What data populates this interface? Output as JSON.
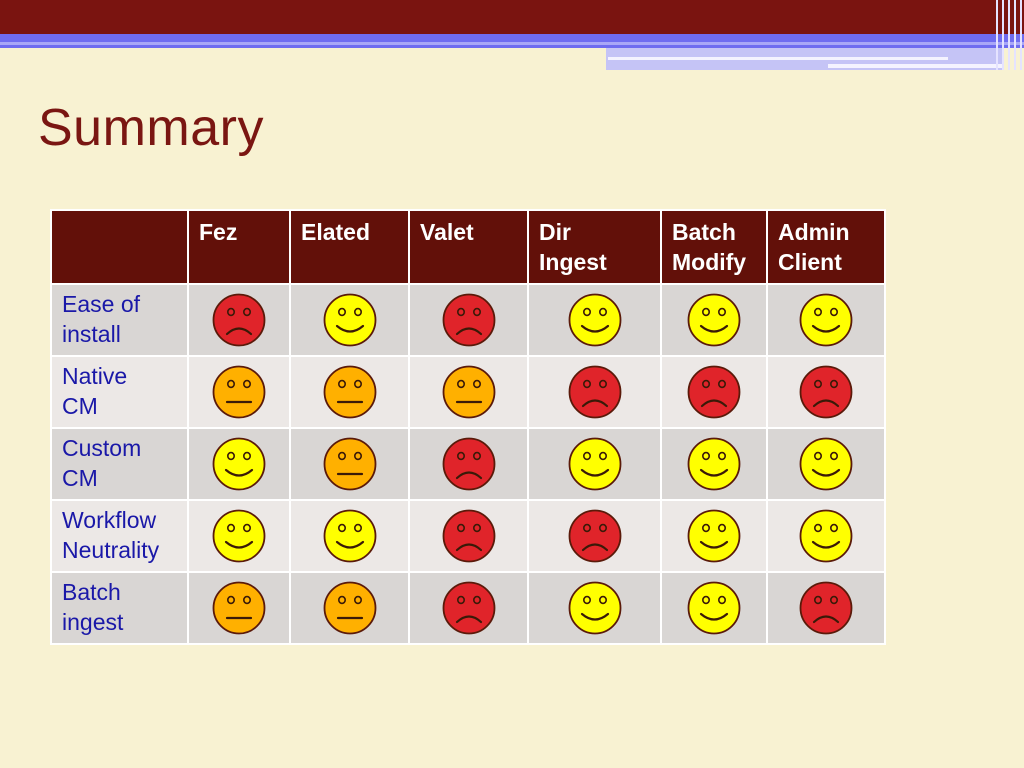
{
  "slide": {
    "title": "Summary"
  },
  "table": {
    "columns": [
      "",
      "Fez",
      "Elated",
      "Valet",
      "Dir Ingest",
      "Batch Modify",
      "Admin Client"
    ],
    "column_lines": [
      [
        ""
      ],
      [
        "Fez"
      ],
      [
        "Elated"
      ],
      [
        "Valet"
      ],
      [
        "Dir",
        "Ingest"
      ],
      [
        "Batch",
        "Modify"
      ],
      [
        "Admin",
        "Client"
      ]
    ],
    "rows": [
      {
        "label_lines": [
          "Ease of",
          "install"
        ],
        "ratings": [
          "sad",
          "happy",
          "sad",
          "happy",
          "happy",
          "happy"
        ]
      },
      {
        "label_lines": [
          "Native",
          "CM"
        ],
        "ratings": [
          "neutral",
          "neutral",
          "neutral",
          "sad",
          "sad",
          "sad"
        ]
      },
      {
        "label_lines": [
          "Custom",
          "CM"
        ],
        "ratings": [
          "happy",
          "neutral",
          "sad",
          "happy",
          "happy",
          "happy"
        ]
      },
      {
        "label_lines": [
          "Workflow",
          "Neutrality"
        ],
        "ratings": [
          "happy",
          "happy",
          "sad",
          "sad",
          "happy",
          "happy"
        ]
      },
      {
        "label_lines": [
          "Batch",
          "ingest"
        ],
        "ratings": [
          "neutral",
          "neutral",
          "sad",
          "happy",
          "happy",
          "sad"
        ]
      }
    ]
  },
  "rating_colors": {
    "happy": "#ffff00",
    "neutral": "#ffb000",
    "sad": "#e0242a"
  },
  "rating_icons": {
    "happy": "happy-face-icon",
    "neutral": "neutral-face-icon",
    "sad": "sad-face-icon"
  }
}
